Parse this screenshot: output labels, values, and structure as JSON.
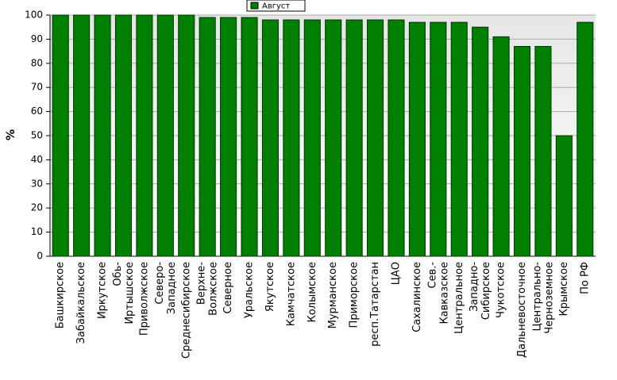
{
  "chart_data": {
    "type": "bar",
    "y_label": "%",
    "categories": [
      "Башкирское",
      "Забайкальское",
      "Иркутское",
      "Обь-Иртышское",
      "Приволжское",
      "Северо-Западное",
      "Среднесибирское",
      "Верхне-Волжское",
      "Северное",
      "Уральское",
      "Якутское",
      "Камчатское",
      "Колымское",
      "Мурманское",
      "Приморское",
      "респ.Татарстан",
      "ЦАО",
      "Сахалинское",
      "Сев.-Кавказское",
      "Центральное",
      "Западно-Сибирское",
      "Чукотское",
      "Дальневосточное",
      "Центрально-Черноземное",
      "Крымское",
      "По РФ"
    ],
    "series": [
      {
        "name": "Август",
        "color": "#008000",
        "values": [
          100,
          100,
          100,
          100,
          100,
          100,
          100,
          99,
          99,
          99,
          98,
          98,
          98,
          98,
          98,
          98,
          98,
          97,
          97,
          97,
          95,
          91,
          87,
          87,
          50,
          97
        ]
      }
    ],
    "ylim": [
      0,
      100
    ],
    "yticks": [
      0,
      10,
      20,
      30,
      40,
      50,
      60,
      70,
      80,
      90,
      100
    ],
    "grid": true,
    "legend": "top"
  }
}
